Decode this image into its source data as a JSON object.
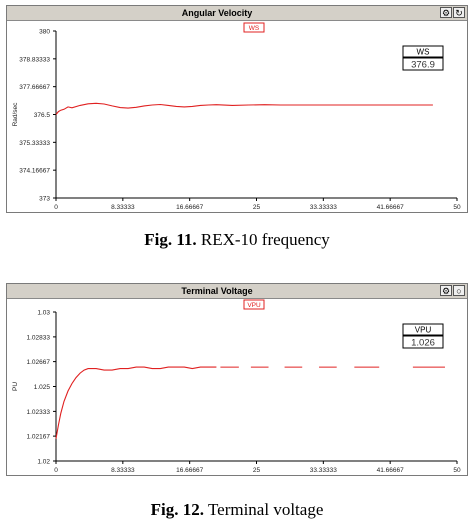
{
  "figures": [
    {
      "panel_title": "Angular Velocity",
      "caption_label": "Fig. 11.",
      "caption_text": "REX-10 frequency"
    },
    {
      "panel_title": "Terminal Voltage",
      "caption_label": "Fig. 12.",
      "caption_text": "Terminal voltage"
    }
  ],
  "colors": {
    "series": "#e02020",
    "frame": "#7a7a7a",
    "titlebar": "#d4d0c8"
  },
  "chart_data": [
    {
      "type": "line",
      "title": "Angular Velocity",
      "ylabel": "Rad/sec",
      "xlabel": "",
      "xlim": [
        0,
        50
      ],
      "ylim": [
        373,
        380
      ],
      "x_ticks": [
        "0",
        "8.33333",
        "16.66667",
        "25",
        "33.33333",
        "41.66667",
        "50"
      ],
      "x_tick_values": [
        0,
        8.33333,
        16.66667,
        25,
        33.33333,
        41.66667,
        50
      ],
      "y_ticks": [
        "373",
        "374.16667",
        "375.33333",
        "376.5",
        "377.66667",
        "378.83333",
        "380"
      ],
      "y_tick_values": [
        373,
        374.16667,
        375.33333,
        376.5,
        377.66667,
        378.83333,
        380
      ],
      "legend_label": "WS",
      "readout": {
        "label": "WS",
        "value": "376.9"
      },
      "grid": false,
      "dashed_segments": [],
      "series": [
        {
          "name": "WS",
          "x": [
            0,
            0.3,
            0.6,
            1.0,
            1.5,
            2,
            3,
            4,
            5,
            6,
            7,
            8,
            9,
            10,
            11,
            12,
            13,
            14,
            15,
            16,
            17,
            18,
            19,
            20,
            22,
            24,
            26,
            28,
            30,
            33,
            36,
            40,
            44,
            47
          ],
          "y": [
            376.5,
            376.62,
            376.68,
            376.72,
            376.82,
            376.78,
            376.88,
            376.95,
            376.97,
            376.94,
            376.86,
            376.79,
            376.77,
            376.8,
            376.86,
            376.9,
            376.92,
            376.88,
            376.84,
            376.82,
            376.84,
            376.88,
            376.9,
            376.91,
            376.88,
            376.9,
            376.91,
            376.9,
            376.9,
            376.9,
            376.9,
            376.9,
            376.9,
            376.9
          ]
        }
      ]
    },
    {
      "type": "line",
      "title": "Terminal Voltage",
      "ylabel": "PU",
      "xlabel": "",
      "xlim": [
        0,
        50
      ],
      "ylim": [
        1.02,
        1.03
      ],
      "x_ticks": [
        "0",
        "8.33333",
        "16.66667",
        "25",
        "33.33333",
        "41.66667",
        "50"
      ],
      "x_tick_values": [
        0,
        8.33333,
        16.66667,
        25,
        33.33333,
        41.66667,
        50
      ],
      "y_ticks": [
        "1.02",
        "1.02167",
        "1.02333",
        "1.025",
        "1.02667",
        "1.02833",
        "1.03"
      ],
      "y_tick_values": [
        1.02,
        1.02167,
        1.02333,
        1.025,
        1.02667,
        1.02833,
        1.03
      ],
      "legend_label": "VPU",
      "readout": {
        "label": "VPU",
        "value": "1.026"
      },
      "grid": false,
      "series": [
        {
          "name": "VPU",
          "x": [
            0,
            0.1,
            0.3,
            0.6,
            1.0,
            1.5,
            2,
            2.5,
            3,
            3.5,
            4,
            5,
            6,
            7,
            8,
            9,
            10,
            11,
            12,
            13,
            14,
            15,
            16,
            17,
            18,
            19,
            20
          ],
          "y": [
            1.0215,
            1.0218,
            1.0224,
            1.0232,
            1.024,
            1.0247,
            1.0252,
            1.0256,
            1.0259,
            1.0261,
            1.0262,
            1.0262,
            1.0261,
            1.0261,
            1.0262,
            1.0262,
            1.0263,
            1.0263,
            1.0262,
            1.0262,
            1.0263,
            1.0263,
            1.0263,
            1.0262,
            1.0263,
            1.0263,
            1.0263
          ]
        }
      ],
      "dashed_segments": [
        [
          20.5,
          22.8
        ],
        [
          24.3,
          26.5
        ],
        [
          28.5,
          30.7
        ],
        [
          32.8,
          35.0
        ],
        [
          37.2,
          40.3
        ],
        [
          44.5,
          48.5
        ]
      ],
      "dashed_value": 1.0263
    }
  ]
}
